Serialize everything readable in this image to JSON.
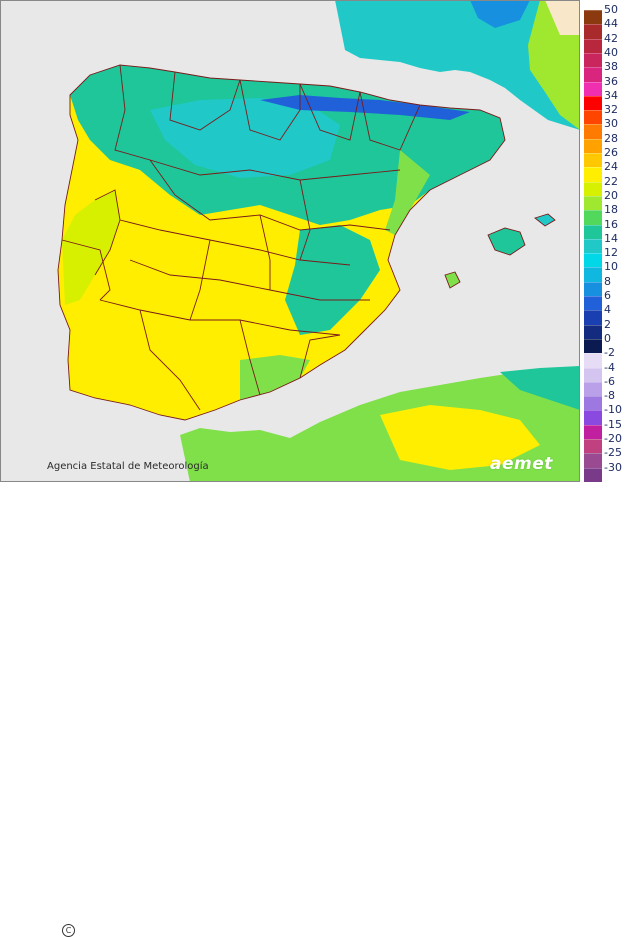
{
  "credit": {
    "symbol": "C",
    "text": "Agencia Estatal de Meteorología"
  },
  "logo": {
    "text": "aemet"
  },
  "legend": {
    "values": [
      "50",
      "44",
      "42",
      "40",
      "38",
      "36",
      "34",
      "32",
      "30",
      "28",
      "26",
      "24",
      "22",
      "20",
      "18",
      "16",
      "14",
      "12",
      "10",
      "8",
      "6",
      "4",
      "2",
      "0",
      "-2",
      "-4",
      "-6",
      "-8",
      "-10",
      "-15",
      "-20",
      "-25",
      "-30"
    ],
    "colors": [
      "#8b3a0f",
      "#a82a2a",
      "#b8273e",
      "#c8265c",
      "#d9257d",
      "#f02fb0",
      "#ff0000",
      "#ff4500",
      "#ff7a00",
      "#ffa200",
      "#ffc800",
      "#ffee00",
      "#d6f000",
      "#a0e830",
      "#52d85a",
      "#1ec69a",
      "#20c8c8",
      "#00d8e8",
      "#10b8e0",
      "#1890e0",
      "#2060d8",
      "#1a3fb0",
      "#142c80",
      "#0b1a50",
      "#e6dcf6",
      "#d3c4f0",
      "#b9a0e8",
      "#9c78e0",
      "#8a4ae0",
      "#c020a0",
      "#c04080",
      "#9a4a90",
      "#7a3a8a"
    ]
  },
  "map_colors": {
    "sea": "#e8e8e8",
    "france_snow": "#f8e7c8",
    "border": "#7a1a1a",
    "warm_yellow": "#ffee00",
    "yellow_green": "#d6f000",
    "green": "#7fe04a",
    "teal": "#1ec69a",
    "cyan": "#20c8c8",
    "cold_blue": "#1890e0",
    "deep_blue": "#2060d8"
  }
}
